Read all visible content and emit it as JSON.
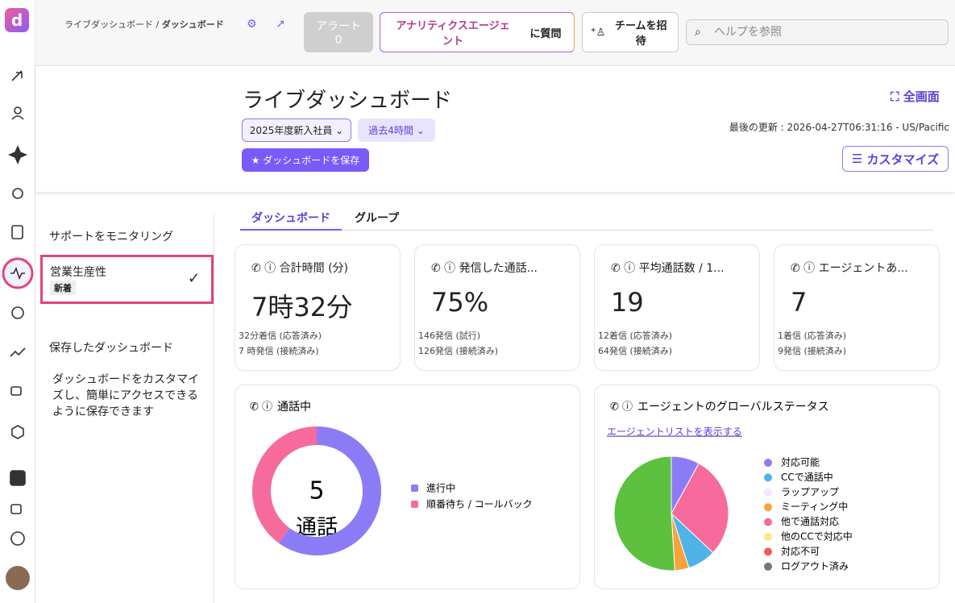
{
  "breadcrumb": {
    "parent": "ライブダッシュボード /",
    "current": "ダッシュボード"
  },
  "topbar": {
    "alert_label": "アラート",
    "alert_count": 0,
    "agent": "アナリティクスエージェント",
    "ask": "に質問",
    "invite": "チームを招待",
    "search_placeholder": "ヘルプを参照"
  },
  "header": {
    "title": "ライブダッシュボード",
    "filters": [
      "2025年度新入社員",
      "過去4時間"
    ],
    "save": "ダッシュボードを保存",
    "fullscreen": "全画面",
    "last_updated": "最後の更新 : 2026-04-27T06:31:16 - US/Pacific",
    "customize": "カスタマイズ"
  },
  "panel": {
    "items": [
      {
        "label": "サポートをモニタリング"
      },
      {
        "label": "営業生産性",
        "badge": "新着"
      }
    ],
    "saved_heading": "保存したダッシュボード",
    "saved_note": "ダッシュボードをカスタマイズし、簡単にアクセスできるように保存できます"
  },
  "tabs": [
    "ダッシュボード",
    "グループ"
  ],
  "cards": [
    {
      "title": "合計時間 (分)",
      "value": "7時32分",
      "lines": [
        "32分着信 (応答済み)",
        "7 時発信 (接続済み)"
      ]
    },
    {
      "title": "発信した通話...",
      "value": "75%",
      "lines": [
        "146発信 (試行)",
        "126発信 (接続済み)"
      ]
    },
    {
      "title": "平均通話数 / 1...",
      "value": "19",
      "lines": [
        "12着信 (応答済み)",
        "64発信 (接続済み)"
      ]
    },
    {
      "title": "エージェントあ...",
      "value": "7",
      "lines": [
        "1着信 (応答済み)",
        "9発信 (接続済み)"
      ]
    }
  ],
  "chart_data": [
    {
      "type": "donut",
      "title": "通話中",
      "center_value": 5,
      "center_label": "通話",
      "categories": [
        "進行中",
        "順番待ち / コールバック"
      ],
      "values": [
        3,
        2
      ],
      "colors": [
        "#8b7cf6",
        "#f76a9c"
      ]
    },
    {
      "type": "pie",
      "title": "エージェントのグローバルステータス",
      "link": "エージェントリストを表示する",
      "categories": [
        "対応可能",
        "他で通話対応",
        "CCで通話中",
        "ミーティング中",
        null,
        "ラップアップ",
        "他のCCで対応中",
        "対応不可",
        "ログアウト済み"
      ],
      "values": [
        8,
        29,
        8,
        4,
        51,
        0,
        0,
        0,
        0
      ],
      "colors": [
        "#8b7cf6",
        "#f76a9c",
        "#4fb3e8",
        "#f7a23b",
        "#5cc13e",
        "#ede9fe",
        "#fde68a",
        "#f25c54",
        "#777777"
      ],
      "legend_order": [
        0,
        2,
        5,
        3,
        1,
        6,
        7,
        8
      ]
    }
  ]
}
